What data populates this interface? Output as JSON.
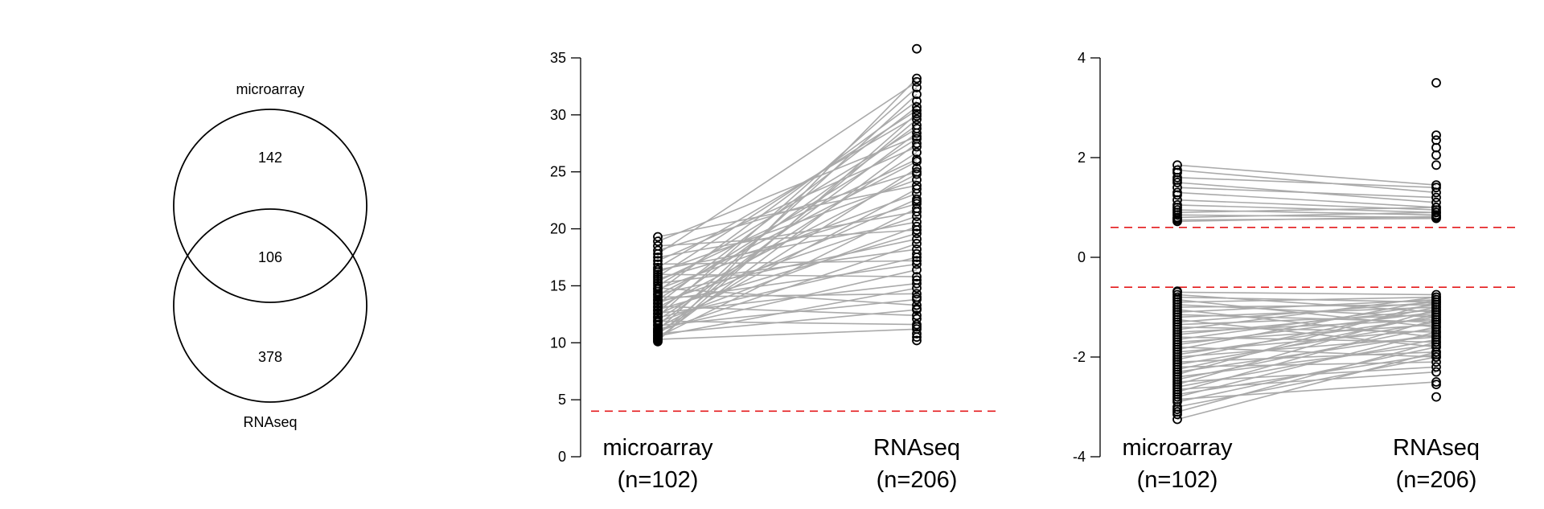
{
  "venn": {
    "set_a_label": "microarray",
    "set_b_label": "RNAseq",
    "only_a": "142",
    "both": "106",
    "only_b": "378"
  },
  "chart_data": [
    {
      "type": "line",
      "categories": [
        "microarray\n(n=102)",
        "RNAseq\n(n=206)"
      ],
      "category_lines": [
        [
          "microarray",
          "(n=102)"
        ],
        [
          "RNAseq",
          "(n=206)"
        ]
      ],
      "ylim": [
        0,
        35
      ],
      "yticks": [
        0,
        5,
        10,
        15,
        20,
        25,
        30,
        35
      ],
      "threshold": 4,
      "threshold_color": "#e41a1c",
      "line_color": "#aaaaaa",
      "pairs": [
        [
          10.1,
          33.2
        ],
        [
          10.2,
          30.1
        ],
        [
          10.3,
          11.2
        ],
        [
          10.4,
          27.5
        ],
        [
          10.5,
          21.8
        ],
        [
          10.6,
          14.8
        ],
        [
          10.7,
          29.6
        ],
        [
          10.8,
          12.9
        ],
        [
          10.9,
          25.3
        ],
        [
          11.0,
          18.7
        ],
        [
          11.1,
          31.8
        ],
        [
          11.2,
          16.4
        ],
        [
          11.3,
          23.5
        ],
        [
          11.5,
          13.8
        ],
        [
          11.6,
          28.4
        ],
        [
          11.8,
          20.2
        ],
        [
          11.9,
          11.6
        ],
        [
          12.0,
          26.7
        ],
        [
          12.2,
          17.5
        ],
        [
          12.3,
          32.4
        ],
        [
          12.5,
          22.6
        ],
        [
          12.6,
          15.2
        ],
        [
          12.8,
          29.1
        ],
        [
          12.9,
          19.6
        ],
        [
          13.1,
          24.8
        ],
        [
          13.2,
          12.4
        ],
        [
          13.4,
          30.7
        ],
        [
          13.5,
          21.1
        ],
        [
          13.7,
          16.9
        ],
        [
          13.8,
          27.9
        ],
        [
          14.0,
          14.3
        ],
        [
          14.2,
          25.9
        ],
        [
          14.3,
          19.1
        ],
        [
          14.5,
          31.2
        ],
        [
          14.7,
          23.1
        ],
        [
          14.8,
          13.3
        ],
        [
          15.0,
          28.8
        ],
        [
          15.2,
          18.2
        ],
        [
          15.4,
          26.1
        ],
        [
          15.6,
          22.2
        ],
        [
          15.8,
          30.4
        ],
        [
          16.0,
          15.8
        ],
        [
          16.2,
          24.3
        ],
        [
          16.4,
          20.6
        ],
        [
          16.6,
          29.9
        ],
        [
          16.9,
          17.2
        ],
        [
          17.2,
          27.2
        ],
        [
          17.5,
          21.5
        ],
        [
          17.8,
          32.9
        ],
        [
          18.1,
          25.0
        ],
        [
          18.5,
          19.9
        ],
        [
          18.9,
          28.1
        ],
        [
          19.3,
          23.8
        ]
      ],
      "extra_right": [
        10.2,
        10.5,
        10.8,
        11.4,
        12.1,
        13.0,
        14.0,
        15.5,
        17.8,
        22.4,
        35.8
      ]
    },
    {
      "type": "line",
      "categories": [
        "microarray\n(n=102)",
        "RNAseq\n(n=206)"
      ],
      "category_lines": [
        [
          "microarray",
          "(n=102)"
        ],
        [
          "RNAseq",
          "(n=206)"
        ]
      ],
      "ylim": [
        -4,
        4
      ],
      "yticks": [
        -4,
        -2,
        0,
        2,
        4
      ],
      "thresholds": [
        0.6,
        -0.6
      ],
      "threshold_color": "#e41a1c",
      "line_color": "#aaaaaa",
      "pairs": [
        [
          1.85,
          1.45
        ],
        [
          1.75,
          1.3
        ],
        [
          1.6,
          1.4
        ],
        [
          1.5,
          1.1
        ],
        [
          1.4,
          1.2
        ],
        [
          1.3,
          1.0
        ],
        [
          1.15,
          0.95
        ],
        [
          1.05,
          0.9
        ],
        [
          0.95,
          0.85
        ],
        [
          0.9,
          1.0
        ],
        [
          0.85,
          0.8
        ],
        [
          0.8,
          0.9
        ],
        [
          0.75,
          0.78
        ],
        [
          0.72,
          0.82
        ],
        [
          -0.7,
          -0.75
        ],
        [
          -0.75,
          -1.1
        ],
        [
          -0.8,
          -0.9
        ],
        [
          -0.85,
          -1.4
        ],
        [
          -0.9,
          -0.8
        ],
        [
          -0.95,
          -1.2
        ],
        [
          -1.0,
          -0.95
        ],
        [
          -1.05,
          -1.6
        ],
        [
          -1.1,
          -0.85
        ],
        [
          -1.15,
          -1.3
        ],
        [
          -1.2,
          -1.0
        ],
        [
          -1.25,
          -1.8
        ],
        [
          -1.3,
          -0.9
        ],
        [
          -1.35,
          -1.15
        ],
        [
          -1.4,
          -1.5
        ],
        [
          -1.45,
          -0.8
        ],
        [
          -1.5,
          -1.25
        ],
        [
          -1.55,
          -1.05
        ],
        [
          -1.6,
          -1.7
        ],
        [
          -1.65,
          -0.95
        ],
        [
          -1.7,
          -1.35
        ],
        [
          -1.75,
          -1.1
        ],
        [
          -1.8,
          -2.0
        ],
        [
          -1.85,
          -0.85
        ],
        [
          -1.9,
          -1.45
        ],
        [
          -1.95,
          -1.2
        ],
        [
          -2.0,
          -1.6
        ],
        [
          -2.05,
          -1.0
        ],
        [
          -2.1,
          -1.9
        ],
        [
          -2.15,
          -1.3
        ],
        [
          -2.2,
          -2.1
        ],
        [
          -2.25,
          -1.15
        ],
        [
          -2.3,
          -1.55
        ],
        [
          -2.35,
          -0.9
        ],
        [
          -2.4,
          -1.75
        ],
        [
          -2.45,
          -1.4
        ],
        [
          -2.5,
          -2.2
        ],
        [
          -2.55,
          -1.05
        ],
        [
          -2.6,
          -1.65
        ],
        [
          -2.65,
          -2.3
        ],
        [
          -2.7,
          -1.25
        ],
        [
          -2.75,
          -1.95
        ],
        [
          -2.8,
          -1.5
        ],
        [
          -2.85,
          -2.5
        ],
        [
          -2.9,
          -1.8
        ],
        [
          -3.0,
          -2.0
        ],
        [
          -3.1,
          -1.7
        ],
        [
          -3.25,
          -1.9
        ]
      ],
      "extra_right": [
        3.5,
        2.45,
        2.35,
        2.2,
        2.05,
        1.85,
        -2.55,
        -2.8
      ],
      "extra_left": [
        1.7,
        1.55,
        1.25,
        1.0,
        0.78,
        -0.68,
        -3.05,
        -3.15
      ]
    }
  ]
}
